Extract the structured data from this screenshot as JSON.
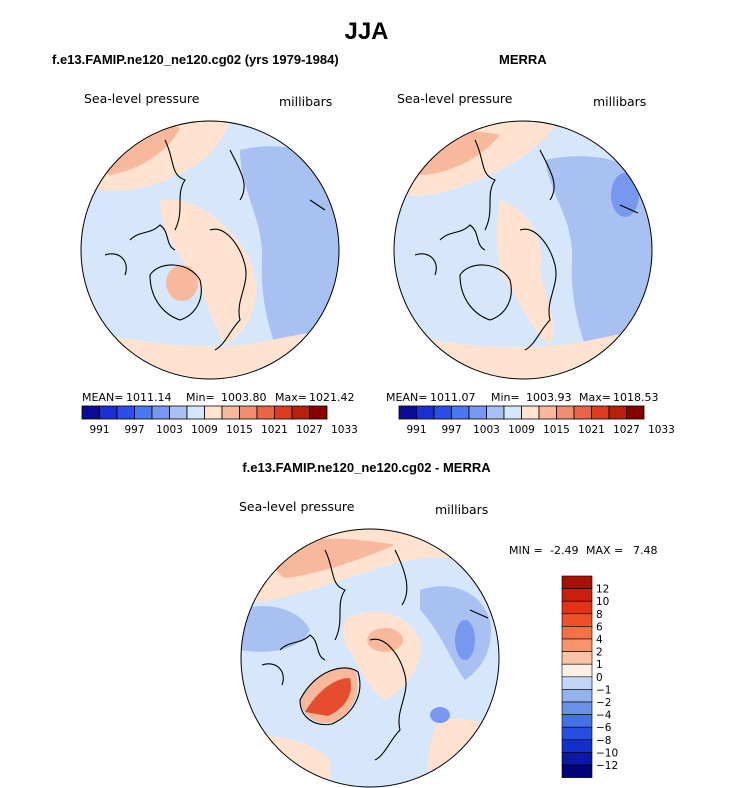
{
  "title": "JJA",
  "panels": [
    {
      "title": "f.e13.FAMIP.ne120_ne120.cg02 (yrs 1979-1984)",
      "left_label": "Sea-level pressure",
      "right_label": "millibars",
      "stats": {
        "mean": "1011.14",
        "min": "1003.80",
        "max": "1021.42"
      }
    },
    {
      "title": "MERRA",
      "left_label": "Sea-level pressure",
      "right_label": "millibars",
      "stats": {
        "mean": "1011.07",
        "min": "1003.93",
        "max": "1018.53"
      }
    },
    {
      "title": "f.e13.FAMIP.ne120_ne120.cg02 - MERRA",
      "left_label": "Sea-level pressure",
      "right_label": "millibars",
      "stats": {
        "min": "-2.49",
        "max": "7.48"
      }
    }
  ],
  "stat_labels": {
    "mean": "MEAN=",
    "min": "Min=",
    "max": "Max=",
    "min_upper": "MIN =",
    "max_upper": "MAX ="
  },
  "colorbar_horizontal": {
    "colors": [
      "#0a0a96",
      "#1a2ed2",
      "#2a4ee6",
      "#4a78ee",
      "#7898f0",
      "#a8c0f2",
      "#d6e6fb",
      "#ffe3d0",
      "#f8b89c",
      "#f08e70",
      "#ea6446",
      "#de3c22",
      "#b8200e",
      "#860000"
    ],
    "labels": [
      "991",
      "997",
      "1003",
      "1009",
      "1015",
      "1021",
      "1027",
      "1033"
    ]
  },
  "colorbar_vertical": {
    "colors": [
      "#a81006",
      "#c8200c",
      "#e43214",
      "#f05028",
      "#f47048",
      "#f8946c",
      "#fac4a4",
      "#fff0e6",
      "#c2d6f6",
      "#94b2ee",
      "#6a90ea",
      "#4670e6",
      "#284ee0",
      "#1430c6",
      "#0a18a4",
      "#04047a"
    ],
    "labels": [
      "12",
      "10",
      "8",
      "6",
      "4",
      "2",
      "1",
      "0",
      "−1",
      "−2",
      "−4",
      "−6",
      "−8",
      "−10",
      "−12"
    ]
  },
  "colors": {
    "neg_light": "#d6e6fb",
    "neg_mid": "#a8c0f2",
    "neg_dark": "#7898f0",
    "pos_light": "#ffe3d0",
    "pos_mid": "#f8b89c",
    "pos_dark": "#f08e70",
    "pos_strong": "#e44e2e",
    "zero": "#f4f4f4"
  }
}
